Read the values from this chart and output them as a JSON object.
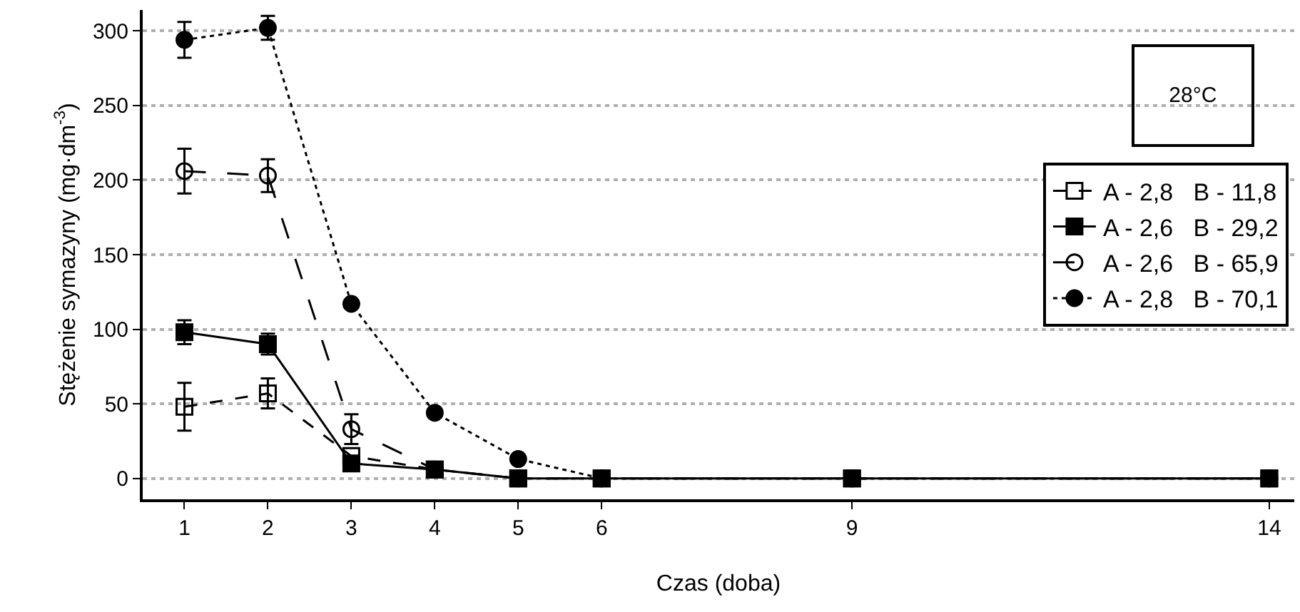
{
  "chart_data": {
    "type": "line",
    "xlabel": "Czas (doba)",
    "ylabel": "Stężenie symazyny (mg·dm$^{-3}$)",
    "x": [
      1,
      2,
      3,
      4,
      5,
      6,
      9,
      14
    ],
    "xlim": [
      0.5,
      14.3
    ],
    "xticks": [
      1,
      2,
      3,
      4,
      5,
      6,
      9,
      14
    ],
    "ylim": [
      -14,
      314
    ],
    "yticks": [
      0,
      50,
      100,
      150,
      200,
      250,
      300
    ],
    "grid": "y",
    "legend": "right",
    "annotations": [
      "28°C"
    ],
    "series": [
      {
        "name": "A - 2,8  B - 11,8",
        "color": "#000000",
        "marker": "square-open",
        "line_style": "dashed",
        "values": [
          48,
          57,
          15,
          6,
          0,
          0,
          0,
          0
        ],
        "errors": [
          16,
          10,
          null,
          null,
          null,
          null,
          null,
          null
        ]
      },
      {
        "name": "A - 2,6  B - 29,2",
        "color": "#000000",
        "marker": "square",
        "line_style": "solid",
        "values": [
          98,
          90,
          10,
          6,
          0,
          0,
          0,
          0
        ],
        "errors": [
          8,
          7,
          null,
          null,
          null,
          null,
          null,
          null
        ]
      },
      {
        "name": "A - 2,6  B - 65,9",
        "color": "#000000",
        "marker": "circle-open",
        "line_style": "longdash",
        "values": [
          206,
          203,
          33,
          6,
          0,
          0,
          0,
          0
        ],
        "errors": [
          15,
          11,
          10,
          null,
          null,
          null,
          null,
          null
        ]
      },
      {
        "name": "A - 2,8  B - 70,1",
        "color": "#000000",
        "marker": "circle",
        "line_style": "dot",
        "values": [
          294,
          302,
          117,
          44,
          13,
          0,
          0,
          0
        ],
        "errors": [
          12,
          8,
          null,
          null,
          null,
          null,
          null,
          null
        ]
      }
    ]
  }
}
